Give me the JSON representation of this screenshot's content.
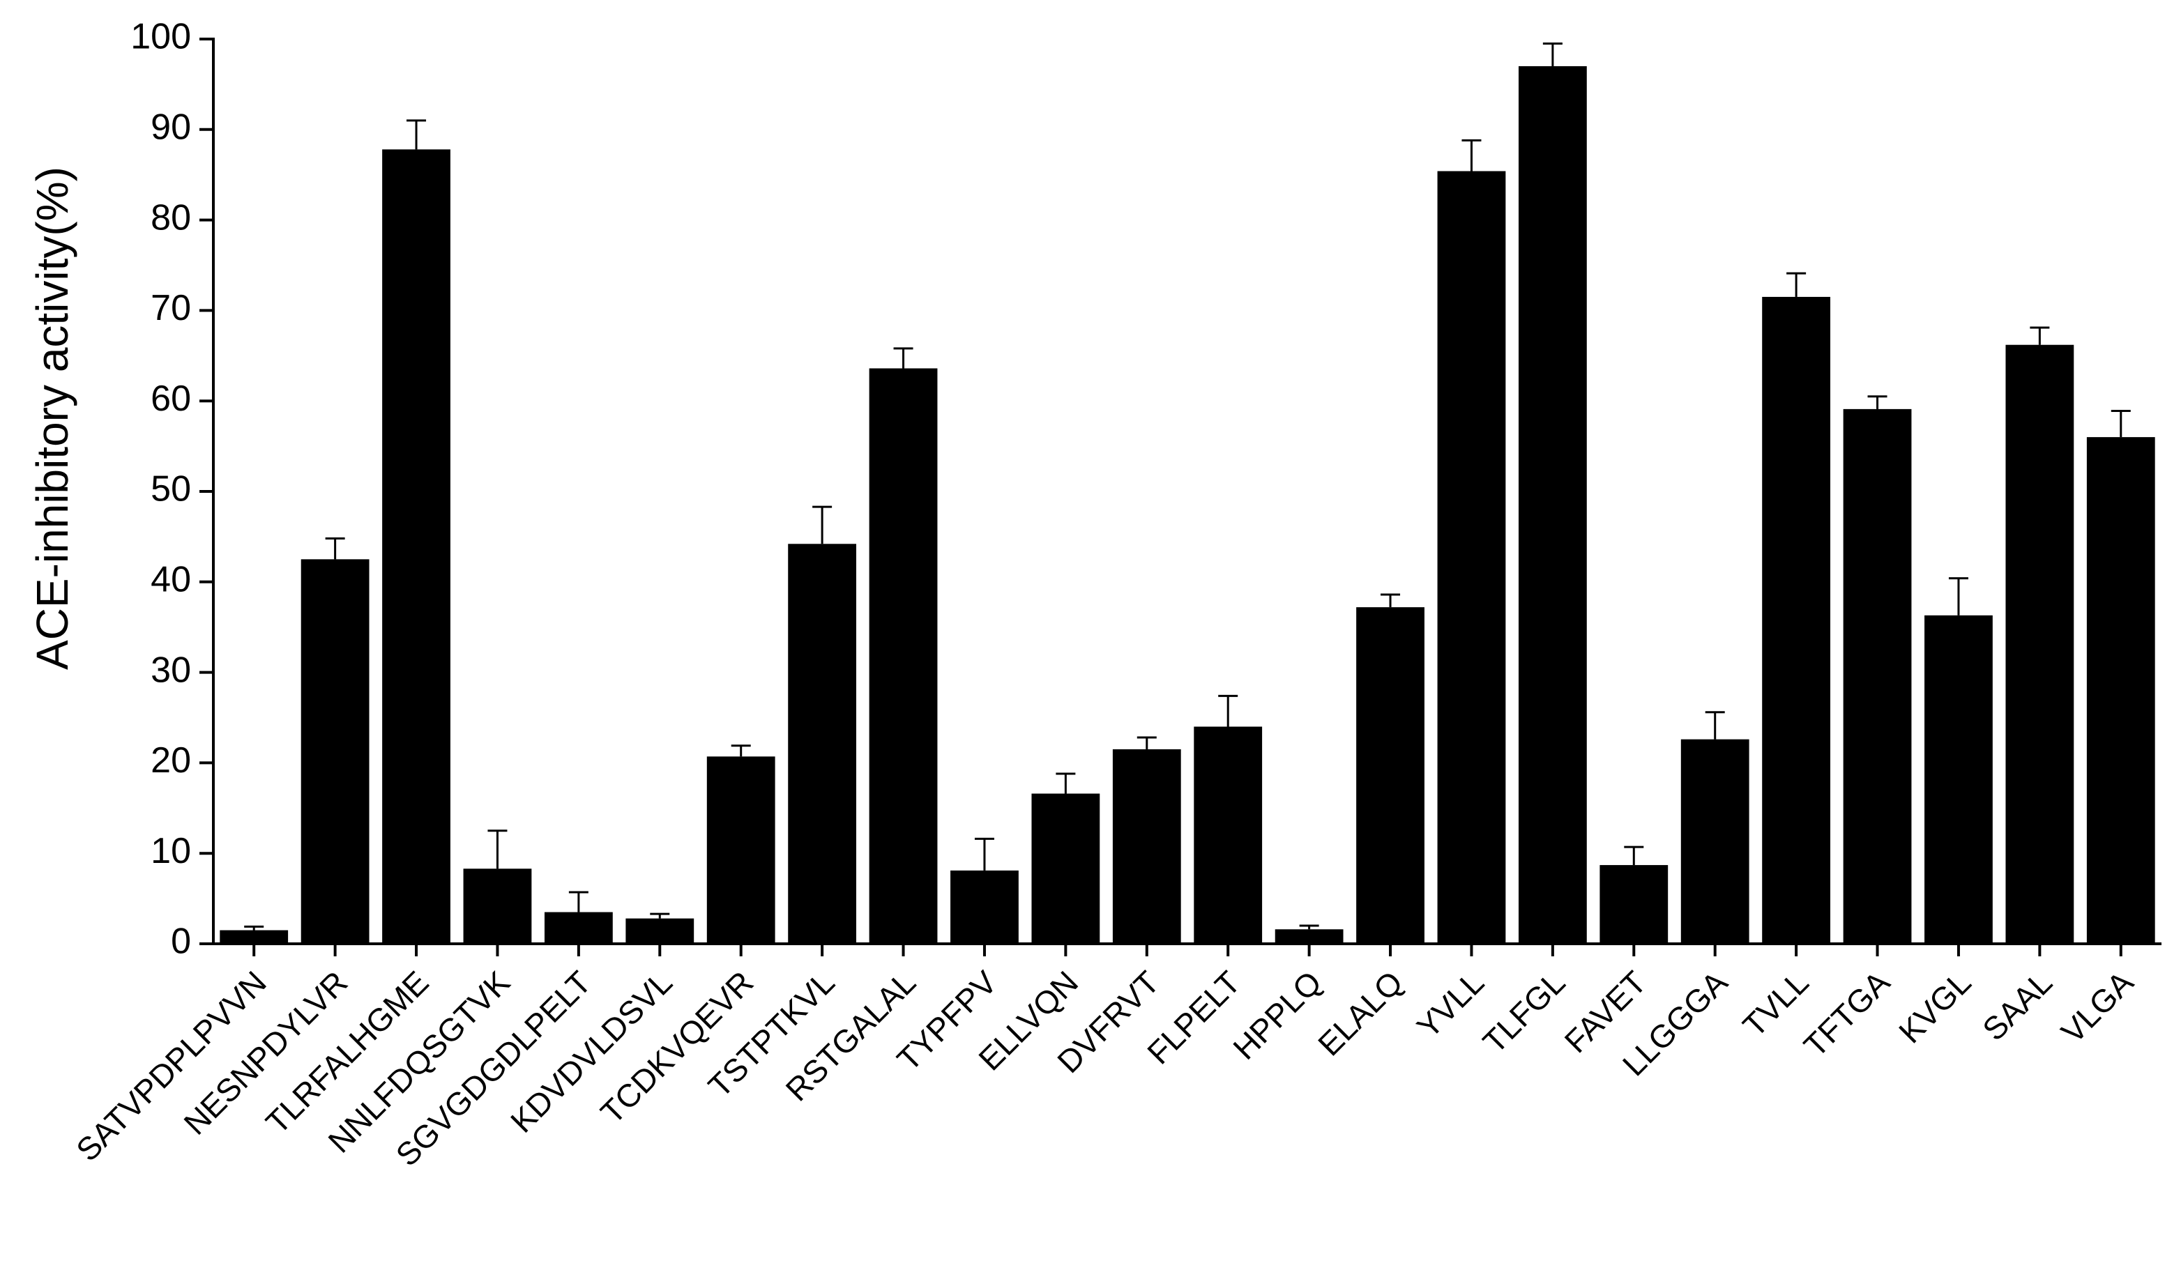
{
  "chart_data": {
    "type": "bar",
    "y_label": "ACE-inhibitory activity(%)",
    "categories": [
      "SATVPDPLPVVN",
      "NESNPDYLVR",
      "TLRFALHGME",
      "NNLFDQSGTVK",
      "SGVGDGDLPELT",
      "KDVDVLDSVL",
      "TCDKVQEVR",
      "TSTPTKVL",
      "RSTGALAL",
      "TYPFPV",
      "ELLVQN",
      "DVFRVT",
      "FLPELT",
      "HPPLQ",
      "ELALQ",
      "YVLL",
      "TLFGL",
      "FAVET",
      "LLGGGA",
      "TVLL",
      "TFTGA",
      "KVGL",
      "SAAL",
      "VLGA"
    ],
    "values": [
      1.5,
      42.5,
      87.8,
      8.3,
      3.5,
      2.8,
      20.7,
      44.2,
      63.6,
      8.1,
      16.6,
      21.5,
      24.0,
      1.6,
      37.2,
      85.4,
      97.0,
      8.7,
      22.6,
      71.5,
      59.1,
      36.3,
      66.2,
      56.0
    ],
    "errors": [
      0.4,
      2.3,
      3.2,
      4.2,
      2.2,
      0.5,
      1.2,
      4.1,
      2.2,
      3.5,
      2.2,
      1.3,
      3.4,
      0.4,
      1.4,
      3.4,
      2.5,
      2.0,
      3.0,
      2.6,
      1.4,
      4.1,
      1.9,
      2.9
    ],
    "color": "#000000",
    "ylim": [
      0,
      100
    ],
    "yticks": [
      0,
      10,
      20,
      30,
      40,
      50,
      60,
      70,
      80,
      90,
      100
    ]
  }
}
